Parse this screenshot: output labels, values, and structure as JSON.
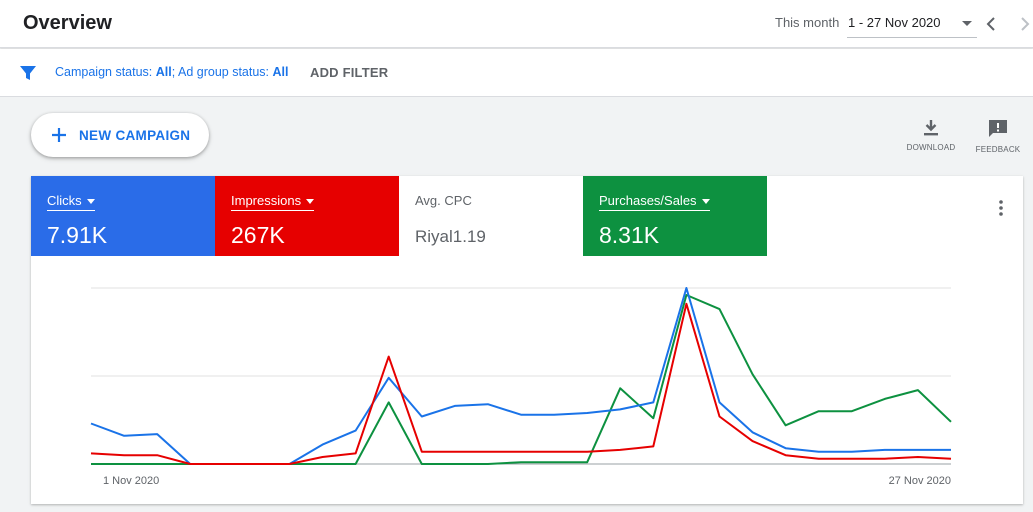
{
  "header": {
    "title": "Overview",
    "date_label": "This month",
    "date_range": "1 - 27 Nov 2020",
    "prev_icon": "chevron-left-icon",
    "next_icon": "chevron-right-icon"
  },
  "filters": {
    "icon": "filter-icon",
    "campaign_label": "Campaign status: ",
    "campaign_value": "All",
    "separator": "; ",
    "adgroup_label": "Ad group status: ",
    "adgroup_value": "All",
    "add_filter": "ADD FILTER"
  },
  "toolbar": {
    "new_campaign": "NEW CAMPAIGN",
    "download": "DOWNLOAD",
    "feedback": "FEEDBACK"
  },
  "colors": {
    "clicks": "#1a73e8",
    "impressions": "#e60000",
    "purchases": "#0d9140",
    "accent": "#1a73e8"
  },
  "metrics": [
    {
      "name": "Clicks",
      "value": "7.91K",
      "color": "#2a6ce8",
      "selected": true
    },
    {
      "name": "Impressions",
      "value": "267K",
      "color": "#e60000",
      "selected": true
    },
    {
      "name": "Avg. CPC",
      "value": "Riyal1.19",
      "color": "#ffffff",
      "selected": false
    },
    {
      "name": "Purchases/Sales",
      "value": "8.31K",
      "color": "#0d9140",
      "selected": true
    }
  ],
  "chart_data": {
    "type": "line",
    "x_start_label": "1 Nov 2020",
    "x_end_label": "27 Nov 2020",
    "x": [
      1,
      2,
      3,
      4,
      5,
      6,
      7,
      8,
      9,
      10,
      11,
      12,
      13,
      14,
      15,
      16,
      17,
      18,
      19,
      20,
      21,
      22,
      23,
      24,
      25,
      26,
      27
    ],
    "ylim": [
      0,
      1
    ],
    "grid": true,
    "series": [
      {
        "name": "Clicks",
        "color": "#1a73e8",
        "values": [
          0.23,
          0.16,
          0.17,
          0,
          0,
          0,
          0,
          0.11,
          0.19,
          0.49,
          0.27,
          0.33,
          0.34,
          0.28,
          0.28,
          0.29,
          0.31,
          0.35,
          1.0,
          0.35,
          0.18,
          0.09,
          0.07,
          0.07,
          0.08,
          0.08,
          0.08
        ]
      },
      {
        "name": "Impressions",
        "color": "#e60000",
        "values": [
          0.06,
          0.05,
          0.05,
          0,
          0,
          0,
          0,
          0.04,
          0.06,
          0.61,
          0.07,
          0.07,
          0.07,
          0.07,
          0.07,
          0.07,
          0.08,
          0.1,
          0.91,
          0.27,
          0.13,
          0.05,
          0.03,
          0.03,
          0.03,
          0.04,
          0.03
        ]
      },
      {
        "name": "Purchases/Sales",
        "color": "#0d9140",
        "values": [
          0,
          0,
          0,
          0,
          0,
          0,
          0,
          0,
          0,
          0.35,
          0,
          0,
          0,
          0.01,
          0.01,
          0.01,
          0.43,
          0.26,
          0.96,
          0.88,
          0.51,
          0.22,
          0.3,
          0.3,
          0.37,
          0.42,
          0.24
        ]
      }
    ]
  }
}
